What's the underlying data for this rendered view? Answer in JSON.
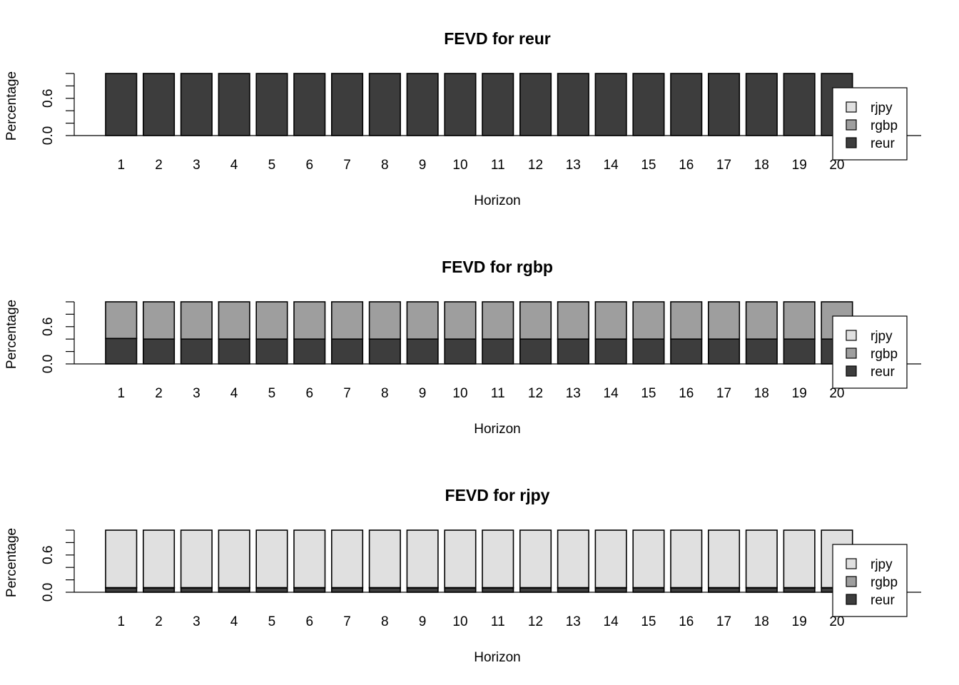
{
  "chart_data": [
    {
      "type": "bar",
      "stacked": true,
      "title": "FEVD for reur",
      "xlabel": "Horizon",
      "ylabel": "Percentage",
      "ylim": [
        0,
        1
      ],
      "yticks": [
        "0.0",
        "0.6"
      ],
      "categories": [
        "1",
        "2",
        "3",
        "4",
        "5",
        "6",
        "7",
        "8",
        "9",
        "10",
        "11",
        "12",
        "13",
        "14",
        "15",
        "16",
        "17",
        "18",
        "19",
        "20"
      ],
      "series": [
        {
          "name": "reur",
          "color": "#3d3d3d",
          "values": [
            1,
            1,
            1,
            1,
            1,
            1,
            1,
            1,
            1,
            1,
            1,
            1,
            1,
            1,
            1,
            1,
            1,
            1,
            1,
            1
          ]
        },
        {
          "name": "rgbp",
          "color": "#9e9e9e",
          "values": [
            0,
            0,
            0,
            0,
            0,
            0,
            0,
            0,
            0,
            0,
            0,
            0,
            0,
            0,
            0,
            0,
            0,
            0,
            0,
            0
          ]
        },
        {
          "name": "rjpy",
          "color": "#e0e0e0",
          "values": [
            0,
            0,
            0,
            0,
            0,
            0,
            0,
            0,
            0,
            0,
            0,
            0,
            0,
            0,
            0,
            0,
            0,
            0,
            0,
            0
          ]
        }
      ],
      "legend": {
        "position": "right",
        "entries": [
          "rjpy",
          "rgbp",
          "reur"
        ]
      }
    },
    {
      "type": "bar",
      "stacked": true,
      "title": "FEVD for rgbp",
      "xlabel": "Horizon",
      "ylabel": "Percentage",
      "ylim": [
        0,
        1
      ],
      "yticks": [
        "0.0",
        "0.6"
      ],
      "categories": [
        "1",
        "2",
        "3",
        "4",
        "5",
        "6",
        "7",
        "8",
        "9",
        "10",
        "11",
        "12",
        "13",
        "14",
        "15",
        "16",
        "17",
        "18",
        "19",
        "20"
      ],
      "series": [
        {
          "name": "reur",
          "color": "#3d3d3d",
          "values": [
            0.41,
            0.4,
            0.4,
            0.4,
            0.4,
            0.4,
            0.4,
            0.4,
            0.4,
            0.4,
            0.4,
            0.4,
            0.4,
            0.4,
            0.4,
            0.4,
            0.4,
            0.4,
            0.4,
            0.4
          ]
        },
        {
          "name": "rgbp",
          "color": "#9e9e9e",
          "values": [
            0.59,
            0.6,
            0.6,
            0.6,
            0.6,
            0.6,
            0.6,
            0.6,
            0.6,
            0.6,
            0.6,
            0.6,
            0.6,
            0.6,
            0.6,
            0.6,
            0.6,
            0.6,
            0.6,
            0.6
          ]
        },
        {
          "name": "rjpy",
          "color": "#e0e0e0",
          "values": [
            0,
            0,
            0,
            0,
            0,
            0,
            0,
            0,
            0,
            0,
            0,
            0,
            0,
            0,
            0,
            0,
            0,
            0,
            0,
            0
          ]
        }
      ],
      "legend": {
        "position": "right",
        "entries": [
          "rjpy",
          "rgbp",
          "reur"
        ]
      }
    },
    {
      "type": "bar",
      "stacked": true,
      "title": "FEVD for rjpy",
      "xlabel": "Horizon",
      "ylabel": "Percentage",
      "ylim": [
        0,
        1
      ],
      "yticks": [
        "0.0",
        "0.6"
      ],
      "categories": [
        "1",
        "2",
        "3",
        "4",
        "5",
        "6",
        "7",
        "8",
        "9",
        "10",
        "11",
        "12",
        "13",
        "14",
        "15",
        "16",
        "17",
        "18",
        "19",
        "20"
      ],
      "series": [
        {
          "name": "reur",
          "color": "#3d3d3d",
          "values": [
            0.07,
            0.07,
            0.07,
            0.07,
            0.07,
            0.07,
            0.07,
            0.07,
            0.07,
            0.07,
            0.07,
            0.07,
            0.07,
            0.07,
            0.07,
            0.07,
            0.07,
            0.07,
            0.07,
            0.07
          ]
        },
        {
          "name": "rgbp",
          "color": "#9e9e9e",
          "values": [
            0.005,
            0.005,
            0.005,
            0.005,
            0.005,
            0.005,
            0.005,
            0.005,
            0.005,
            0.005,
            0.005,
            0.005,
            0.005,
            0.005,
            0.005,
            0.005,
            0.005,
            0.005,
            0.005,
            0.005
          ]
        },
        {
          "name": "rjpy",
          "color": "#e0e0e0",
          "values": [
            0.925,
            0.925,
            0.925,
            0.925,
            0.925,
            0.925,
            0.925,
            0.925,
            0.925,
            0.925,
            0.925,
            0.925,
            0.925,
            0.925,
            0.925,
            0.925,
            0.925,
            0.925,
            0.925,
            0.925
          ]
        }
      ],
      "legend": {
        "position": "right",
        "entries": [
          "rjpy",
          "rgbp",
          "reur"
        ]
      }
    }
  ]
}
